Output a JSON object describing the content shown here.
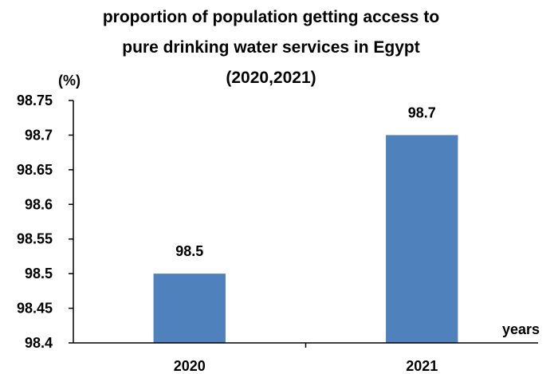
{
  "chart_data": {
    "type": "bar",
    "title_lines": [
      "proportion of population getting access to",
      "pure drinking water services in Egypt",
      "(2020,2021)"
    ],
    "ylabel": "(%)",
    "xlabel": "years",
    "categories": [
      "2020",
      "2021"
    ],
    "values": [
      98.5,
      98.7
    ],
    "data_labels": [
      "98.5",
      "98.7"
    ],
    "ylim": [
      98.4,
      98.75
    ],
    "yticks": [
      98.4,
      98.45,
      98.5,
      98.55,
      98.6,
      98.65,
      98.7,
      98.75
    ],
    "ytick_labels": [
      "98.4",
      "98.45",
      "98.5",
      "98.55",
      "98.6",
      "98.65",
      "98.7",
      "98.75"
    ],
    "grid": false,
    "legend": "none",
    "bar_color": "#4f81bd"
  }
}
